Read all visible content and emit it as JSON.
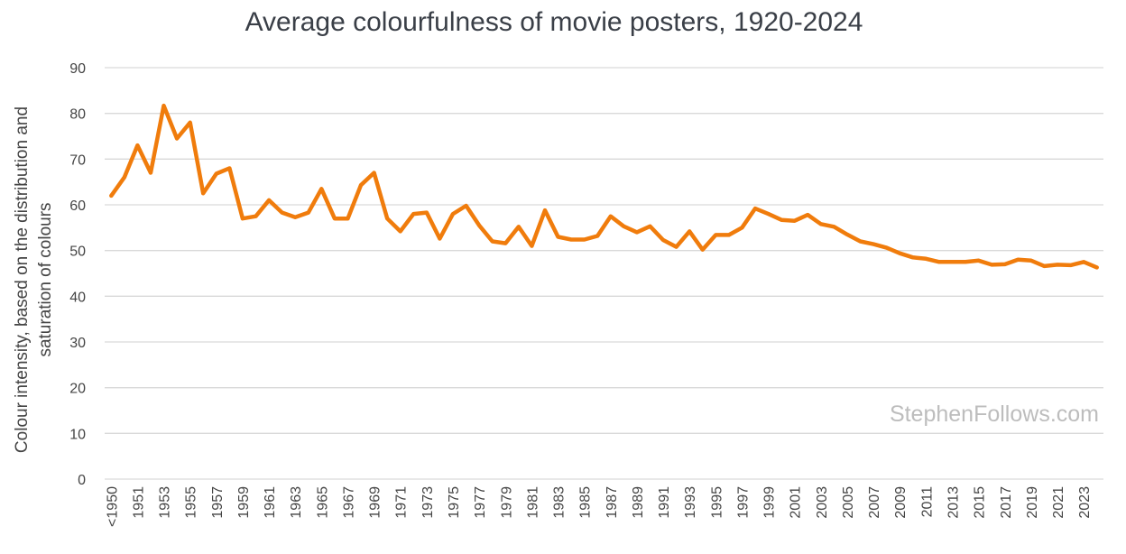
{
  "chart_data": {
    "type": "line",
    "title": "Average colourfulness of movie posters, 1920-2024",
    "y_label": [
      "Colour intensity, based on the distribution and",
      "saturation of colours"
    ],
    "watermark": "StephenFollows.com",
    "categories": [
      "<1950",
      null,
      "1951",
      null,
      "1953",
      null,
      "1955",
      null,
      "1957",
      null,
      "1959",
      null,
      "1961",
      null,
      "1963",
      null,
      "1965",
      null,
      "1967",
      null,
      "1969",
      null,
      "1971",
      null,
      "1973",
      null,
      "1975",
      null,
      "1977",
      null,
      "1979",
      null,
      "1981",
      null,
      "1983",
      null,
      "1985",
      null,
      "1987",
      null,
      "1989",
      null,
      "1991",
      null,
      "1993",
      null,
      "1995",
      null,
      "1997",
      null,
      "1999",
      null,
      "2001",
      null,
      "2003",
      null,
      "2005",
      null,
      "2007",
      null,
      "2009",
      null,
      "2011",
      null,
      "2013",
      null,
      "2015",
      null,
      "2017",
      null,
      "2019",
      null,
      "2021",
      null,
      "2023",
      null
    ],
    "series": [
      {
        "name": "Colourfulness",
        "color": "#f07c0c",
        "values": [
          62,
          66,
          73,
          67,
          81.7,
          74.5,
          78,
          62.5,
          66.8,
          68,
          57,
          57.5,
          61,
          58.3,
          57.3,
          58.3,
          63.5,
          57,
          57,
          64.3,
          67,
          57,
          54.2,
          58,
          58.3,
          52.6,
          58,
          59.8,
          55.5,
          52,
          51.6,
          55.2,
          51,
          58.8,
          53,
          52.4,
          52.4,
          53.2,
          57.5,
          55.3,
          54,
          55.3,
          52.3,
          50.8,
          54.2,
          50.2,
          53.4,
          53.4,
          55,
          59.2,
          58,
          56.7,
          56.5,
          57.8,
          55.8,
          55.2,
          53.5,
          52,
          51.4,
          50.6,
          49.4,
          48.5,
          48.2,
          47.5,
          47.5,
          47.5,
          47.8,
          46.9,
          47,
          48,
          47.8,
          46.6,
          46.9,
          46.8,
          47.5,
          46.3
        ]
      }
    ],
    "ylim": [
      0,
      90
    ],
    "yticks": [
      0,
      10,
      20,
      30,
      40,
      50,
      60,
      70,
      80,
      90
    ],
    "grid": true
  }
}
